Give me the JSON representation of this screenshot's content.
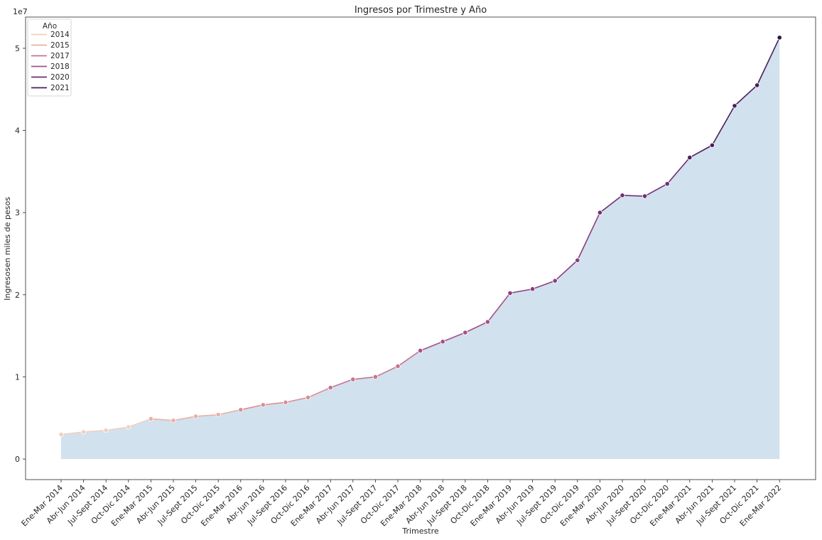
{
  "chart_data": {
    "type": "line",
    "title": "Ingresos por Trimestre y Año",
    "xlabel": "Trimestre",
    "ylabel": "Ingresosen miles de pesos",
    "y_scale_label": "1e7",
    "ylim": [
      -2500000,
      53800000
    ],
    "y_ticks": [
      0,
      10000000,
      20000000,
      30000000,
      40000000,
      50000000
    ],
    "y_tick_labels": [
      "0",
      "1",
      "2",
      "3",
      "4",
      "5"
    ],
    "grid": false,
    "legend": {
      "title": "Año",
      "placement": "top-left",
      "entries": [
        "2014",
        "2015",
        "2017",
        "2018",
        "2020",
        "2021"
      ]
    },
    "area_fill_color": "#d1e1ee",
    "categories": [
      "Ene-Mar 2014",
      "Abr-Jun 2014",
      "Jul-Sept 2014",
      "Oct-Dic 2014",
      "Ene-Mar 2015",
      "Abr-Jun 2015",
      "Jul-Sept 2015",
      "Oct-Dic 2015",
      "Ene-Mar 2016",
      "Abr-Jun 2016",
      "Jul-Sept 2016",
      "Oct-Dic 2016",
      "Ene-Mar 2017",
      "Abr-Jun 2017",
      "Jul-Sept 2017",
      "Oct-Dic 2017",
      "Ene-Mar 2018",
      "Abr-Jun 2018",
      "Jul-Sept 2018",
      "Oct-Dic 2018",
      "Ene-Mar 2019",
      "Abr-Jun 2019",
      "Jul-Sept 2019",
      "Oct-Dic 2019",
      "Ene-Mar 2020",
      "Abr-Jun 2020",
      "Jul-Sept 2020",
      "Oct-Dic 2020",
      "Ene-Mar 2021",
      "Abr-Jun 2021",
      "Jul-Sept 2021",
      "Oct-Dic 2021",
      "Ene-Mar 2022"
    ],
    "values": [
      3000000,
      3300000,
      3500000,
      3900000,
      4900000,
      4700000,
      5200000,
      5400000,
      6000000,
      6600000,
      6900000,
      7500000,
      8700000,
      9700000,
      10000000,
      11300000,
      13200000,
      14300000,
      15400000,
      16700000,
      20200000,
      20700000,
      21700000,
      24200000,
      30000000,
      32100000,
      32000000,
      33500000,
      36700000,
      38200000,
      43000000,
      45500000,
      51300000
    ],
    "point_colors": [
      "#f0d0bd",
      "#f0d0bd",
      "#f0d0bd",
      "#f0d0bd",
      "#e8b1a3",
      "#e8b1a3",
      "#e8b1a3",
      "#e8b1a3",
      "#da8f93",
      "#da8f93",
      "#da8f93",
      "#da8f93",
      "#c8748b",
      "#c8748b",
      "#c8748b",
      "#c8748b",
      "#a65088",
      "#a65088",
      "#a65088",
      "#a65088",
      "#8b3d80",
      "#8b3d80",
      "#8b3d80",
      "#8b3d80",
      "#6e2f74",
      "#6e2f74",
      "#6e2f74",
      "#6e2f74",
      "#4a1f5c",
      "#4a1f5c",
      "#4a1f5c",
      "#4a1f5c",
      "#2c1440"
    ],
    "legend_colors": [
      "#f0d0bd",
      "#e8b1a3",
      "#c8748b",
      "#a65088",
      "#6e2f74",
      "#4a1f5c"
    ]
  }
}
